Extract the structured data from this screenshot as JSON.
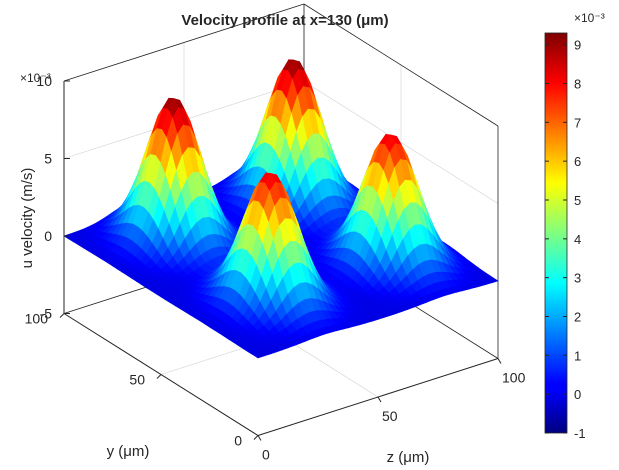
{
  "chart_data": {
    "type": "surface",
    "title": "Velocity profile at x=130 (μm)",
    "xlabel": "z (μm)",
    "ylabel": "y (μm)",
    "zlabel": "u velocity (m/s)",
    "z_multiplier": "×10⁻³",
    "x_ticks": [
      "0",
      "50",
      "100"
    ],
    "y_ticks": [
      "0",
      "50",
      "100"
    ],
    "z_ticks": [
      "-5",
      "0",
      "5",
      "10"
    ],
    "xlim": [
      0,
      100
    ],
    "ylim": [
      0,
      100
    ],
    "zlim": [
      -5,
      10
    ],
    "colormap": "jet",
    "colorbar": {
      "range": [
        -1,
        9.3
      ],
      "ticks": [
        "-1",
        "0",
        "1",
        "2",
        "3",
        "4",
        "5",
        "6",
        "7",
        "8",
        "9"
      ],
      "multiplier": "×10⁻³"
    },
    "peaks": [
      {
        "z": 28,
        "y": 78,
        "u": 9.3
      },
      {
        "z": 78,
        "y": 78,
        "u": 9.3
      },
      {
        "z": 28,
        "y": 28,
        "u": 8.4
      },
      {
        "z": 78,
        "y": 28,
        "u": 8.4
      }
    ],
    "baseline_u": 0,
    "grid": true
  }
}
